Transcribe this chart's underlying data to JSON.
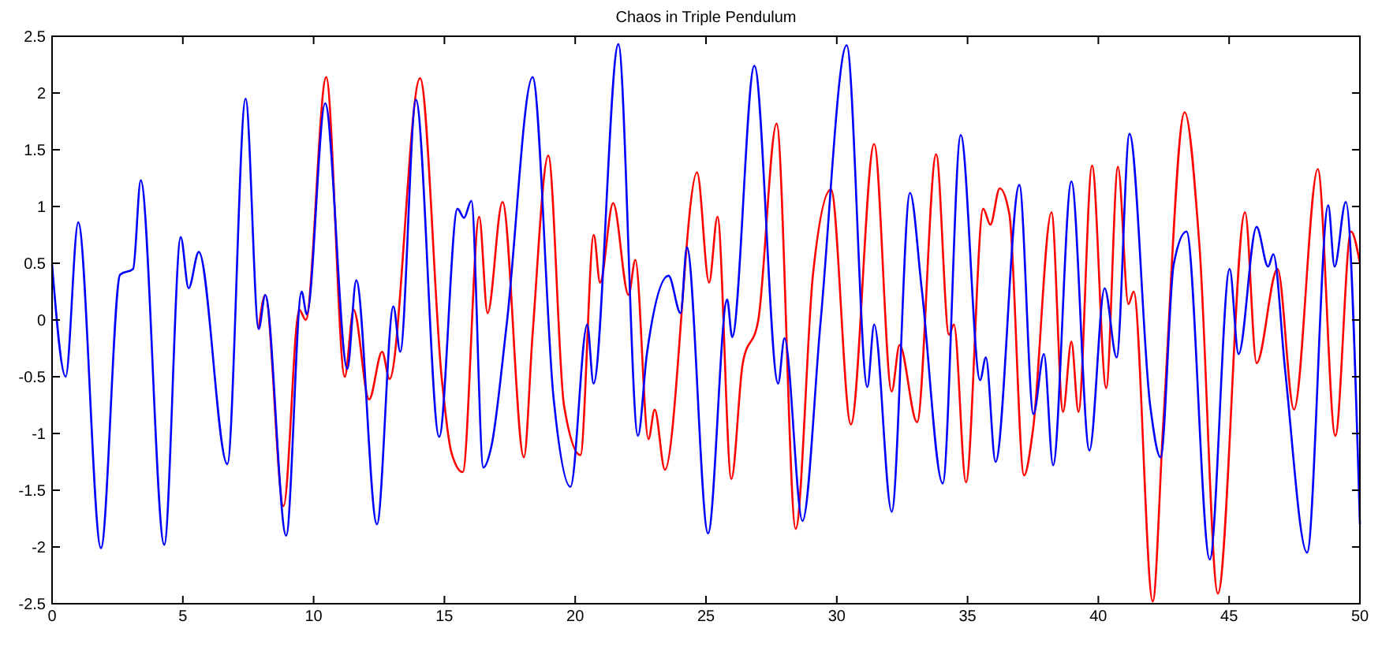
{
  "chart_data": {
    "type": "line",
    "title": "Chaos in Triple Pendulum",
    "xlim": [
      0,
      50
    ],
    "xticks": [
      0,
      5,
      10,
      15,
      20,
      25,
      30,
      35,
      40,
      45,
      50
    ],
    "ylim": [
      -2.5,
      2.5
    ],
    "yticks": [
      -2.5,
      -2,
      -1.5,
      -1,
      -0.5,
      0,
      0.5,
      1,
      1.5,
      2,
      2.5
    ],
    "grid": false,
    "marker": "none",
    "line_style": "solid",
    "series": [
      {
        "color": "#ff0000",
        "x": [
          7.9,
          8.15,
          8.85,
          9.45,
          9.7,
          10.48,
          11.19,
          11.53,
          12.12,
          12.62,
          12.9,
          14.07,
          14.9,
          15.26,
          15.7,
          16.33,
          16.65,
          17.22,
          18.04,
          18.37,
          18.97,
          19.57,
          20.2,
          20.71,
          20.95,
          21.45,
          22.04,
          22.3,
          22.8,
          23.04,
          23.43,
          24.66,
          25.12,
          25.44,
          25.97,
          26.4,
          27.0,
          27.7,
          28.43,
          29.09,
          29.78,
          30.54,
          31.43,
          32.1,
          32.4,
          33.07,
          33.8,
          34.29,
          34.48,
          34.94,
          35.6,
          35.87,
          36.23,
          36.6,
          37.16,
          37.5,
          38.21,
          38.65,
          38.97,
          39.24,
          39.76,
          40.3,
          40.75,
          41.15,
          41.35,
          42.08,
          42.48,
          43.3,
          43.87,
          44.57,
          45.61,
          46.05,
          46.85,
          47.48,
          48.39,
          49.06,
          49.66,
          50
        ],
        "values": [
          -0.08,
          0.22,
          -1.64,
          0.09,
          0.0,
          2.14,
          -0.5,
          0.09,
          -0.7,
          -0.28,
          -0.52,
          2.13,
          -0.52,
          -1.16,
          -1.34,
          0.91,
          0.06,
          1.04,
          -1.21,
          -0.13,
          1.45,
          -0.75,
          -1.19,
          0.75,
          0.33,
          1.03,
          0.22,
          0.53,
          -1.05,
          -0.79,
          -1.32,
          1.3,
          0.33,
          0.91,
          -1.4,
          -0.39,
          0.0,
          1.73,
          -1.84,
          0.4,
          1.15,
          -0.92,
          1.55,
          -0.63,
          -0.22,
          -0.9,
          1.46,
          -0.13,
          -0.04,
          -1.43,
          0.98,
          0.84,
          1.16,
          0.93,
          -1.37,
          -0.97,
          0.95,
          -0.81,
          -0.19,
          -0.81,
          1.36,
          -0.6,
          1.35,
          0.14,
          0.25,
          -2.48,
          -0.92,
          1.83,
          0.64,
          -2.41,
          0.95,
          -0.38,
          0.45,
          -0.79,
          1.33,
          -1.02,
          0.78,
          0.5
        ]
      },
      {
        "color": "#0000ff",
        "x": [
          0,
          0.52,
          1.0,
          1.87,
          2.6,
          3.1,
          3.39,
          4.29,
          4.92,
          5.22,
          5.61,
          6.7,
          7.4,
          7.9,
          8.15,
          8.95,
          9.54,
          9.74,
          10.44,
          11.29,
          11.63,
          12.42,
          13.05,
          13.31,
          13.91,
          14.8,
          15.5,
          15.75,
          16.03,
          16.49,
          16.79,
          17.38,
          18.37,
          19.17,
          19.82,
          20.46,
          20.7,
          21.65,
          22.4,
          22.74,
          23.57,
          24.03,
          24.27,
          25.08,
          25.81,
          26.0,
          26.85,
          27.76,
          28.0,
          28.69,
          29.38,
          30.38,
          31.17,
          31.43,
          32.1,
          32.8,
          33.25,
          34.05,
          34.74,
          35.48,
          35.7,
          36.07,
          36.98,
          37.52,
          37.92,
          38.27,
          38.97,
          39.66,
          40.24,
          40.7,
          41.19,
          41.98,
          42.38,
          42.88,
          43.37,
          44.26,
          45.02,
          45.36,
          46.05,
          46.49,
          46.69,
          47.14,
          47.98,
          48.79,
          49.03,
          49.46,
          50
        ],
        "values": [
          0.49,
          -0.5,
          0.86,
          -2.01,
          0.4,
          0.45,
          1.23,
          -1.98,
          0.73,
          0.28,
          0.6,
          -1.27,
          1.95,
          -0.08,
          0.22,
          -1.9,
          0.25,
          0.05,
          1.91,
          -0.43,
          0.35,
          -1.8,
          0.12,
          -0.28,
          1.94,
          -1.03,
          0.98,
          0.9,
          1.05,
          -1.3,
          -1.12,
          -0.04,
          2.14,
          -0.68,
          -1.47,
          -0.04,
          -0.56,
          2.43,
          -1.02,
          -0.3,
          0.39,
          0.06,
          0.64,
          -1.88,
          0.18,
          -0.15,
          2.24,
          -0.56,
          -0.16,
          -1.77,
          -0.02,
          2.42,
          -0.59,
          -0.04,
          -1.69,
          1.12,
          0.27,
          -1.44,
          1.63,
          -0.53,
          -0.33,
          -1.25,
          1.19,
          -0.83,
          -0.3,
          -1.28,
          1.22,
          -1.15,
          0.28,
          -0.33,
          1.64,
          -0.75,
          -1.21,
          0.49,
          0.78,
          -2.11,
          0.45,
          -0.3,
          0.82,
          0.47,
          0.58,
          -0.44,
          -2.05,
          1.01,
          0.47,
          1.04,
          -1.8
        ]
      }
    ]
  }
}
